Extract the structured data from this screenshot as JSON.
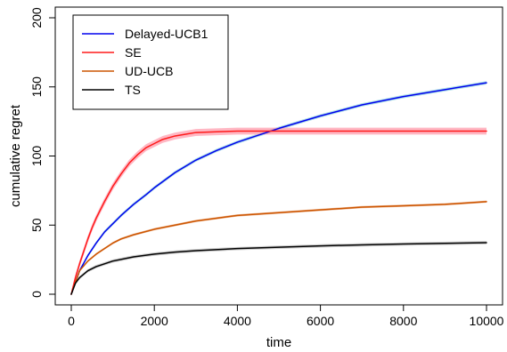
{
  "chart_data": {
    "type": "line",
    "xlabel": "time",
    "ylabel": "cumulative regret",
    "xlim": [
      0,
      10000
    ],
    "ylim": [
      0,
      200
    ],
    "x_ticks": [
      0,
      2000,
      4000,
      6000,
      8000,
      10000
    ],
    "y_ticks": [
      0,
      50,
      100,
      150,
      200
    ],
    "grid": false,
    "legend_position": "top-left",
    "series": [
      {
        "name": "Delayed-UCB1",
        "color": "#0000ee",
        "band_color": "#87cedc",
        "band_halfwidth": 1.2,
        "x": [
          0,
          200,
          400,
          600,
          800,
          1000,
          1200,
          1500,
          1800,
          2000,
          2500,
          3000,
          3500,
          4000,
          4500,
          5000,
          6000,
          7000,
          8000,
          9000,
          10000
        ],
        "y": [
          0,
          17,
          28,
          37,
          45,
          51,
          57,
          65,
          72,
          77,
          88,
          97,
          104,
          110,
          115,
          120,
          129,
          137,
          143,
          148,
          153
        ]
      },
      {
        "name": "SE",
        "color": "#ff1a1a",
        "band_color": "#ff99aa",
        "band_halfwidth": 2.5,
        "x": [
          0,
          100,
          200,
          300,
          400,
          500,
          600,
          800,
          1000,
          1200,
          1400,
          1600,
          1800,
          2000,
          2200,
          2500,
          2800,
          3000,
          3500,
          4000,
          4500,
          5000,
          6000,
          7000,
          8000,
          9000,
          10000
        ],
        "y": [
          0,
          12,
          22,
          31,
          40,
          48,
          55,
          67,
          78,
          87,
          95,
          101,
          106,
          109,
          112,
          114.5,
          116,
          117,
          117.5,
          118,
          118,
          118,
          118,
          118,
          118,
          118,
          118
        ]
      },
      {
        "name": "UD-UCB",
        "color": "#cc5500",
        "band_color": "#e8a070",
        "band_halfwidth": 0.8,
        "x": [
          0,
          200,
          400,
          600,
          800,
          1000,
          1200,
          1500,
          2000,
          2500,
          3000,
          3500,
          4000,
          5000,
          6000,
          7000,
          8000,
          9000,
          10000
        ],
        "y": [
          0,
          17,
          24,
          29,
          33,
          37,
          40,
          43,
          47,
          50,
          53,
          55,
          57,
          59,
          61,
          63,
          64,
          65,
          67
        ]
      },
      {
        "name": "TS",
        "color": "#000000",
        "band_color": "#bbbbbb",
        "band_halfwidth": 1.2,
        "x": [
          0,
          100,
          200,
          400,
          600,
          800,
          1000,
          1500,
          2000,
          2500,
          3000,
          4000,
          5000,
          6000,
          7000,
          8000,
          9000,
          10000
        ],
        "y": [
          0,
          8,
          12,
          17,
          20,
          22,
          24,
          27,
          29,
          30.5,
          31.5,
          33,
          34,
          35,
          35.7,
          36.3,
          36.8,
          37.3
        ]
      }
    ]
  }
}
